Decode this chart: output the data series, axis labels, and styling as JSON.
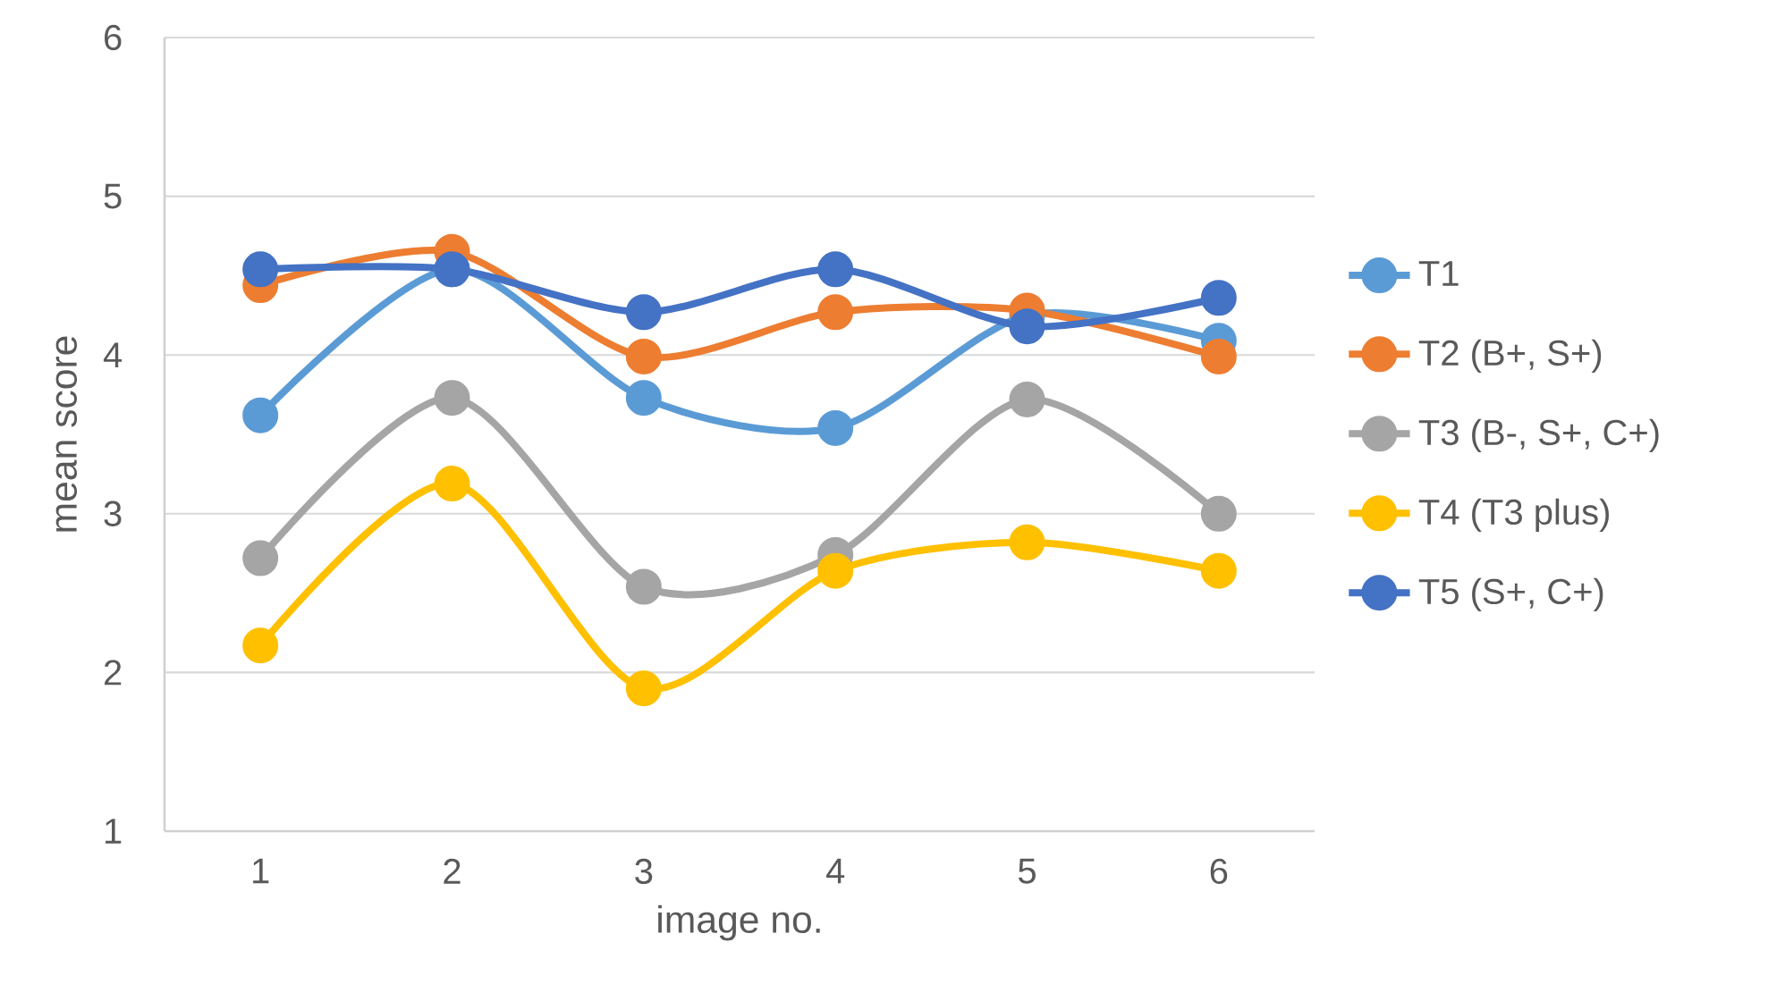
{
  "chart_data": {
    "type": "line",
    "xlabel": "image no.",
    "ylabel": "mean score",
    "categories": [
      "1",
      "2",
      "3",
      "4",
      "5",
      "6"
    ],
    "ylim": [
      1,
      6
    ],
    "yticks": [
      1,
      2,
      3,
      4,
      5,
      6
    ],
    "grid": "y",
    "legend": "right",
    "marker": "circle",
    "line_style": "solid",
    "series": [
      {
        "name": "T1",
        "color": "#5b9bd5",
        "values": [
          3.62,
          4.54,
          3.73,
          3.54,
          4.25,
          4.09
        ]
      },
      {
        "name": "T2 (B+, S+)",
        "color": "#ed7d31",
        "values": [
          4.44,
          4.65,
          3.99,
          4.27,
          4.28,
          3.99
        ]
      },
      {
        "name": "T3 (B-, S+, C+)",
        "color": "#a5a5a5",
        "values": [
          2.72,
          3.73,
          2.54,
          2.74,
          3.72,
          3.0
        ]
      },
      {
        "name": "T4 (T3 plus)",
        "color": "#ffc000",
        "values": [
          2.17,
          3.19,
          1.9,
          2.64,
          2.82,
          2.64
        ]
      },
      {
        "name": "T5 (S+, C+)",
        "color": "#4472c4",
        "values": [
          4.54,
          4.54,
          4.27,
          4.54,
          4.18,
          4.36
        ]
      }
    ]
  }
}
